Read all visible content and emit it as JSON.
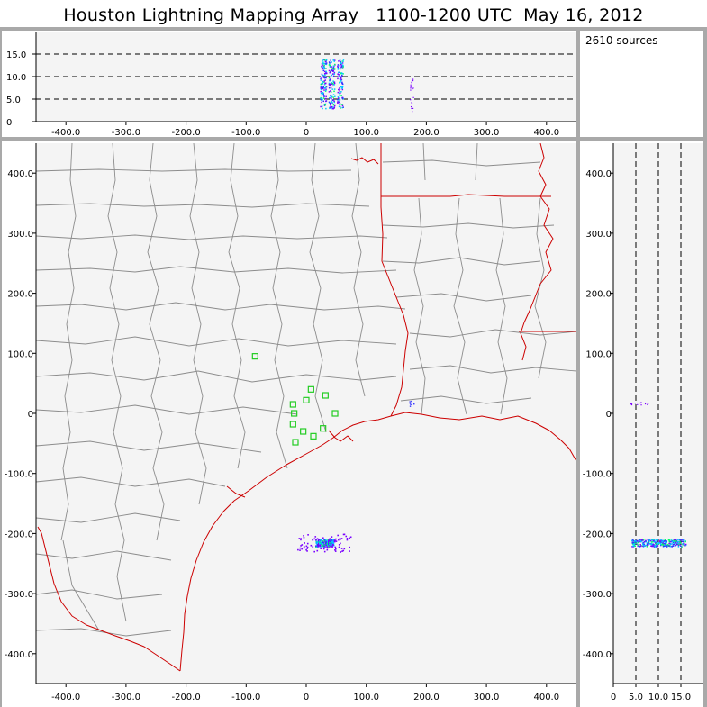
{
  "title": "Houston Lightning Mapping Array   1100-1200 UTC  May 16, 2012",
  "source_count_label": "2610 sources",
  "colors": {
    "background": "#f4f4f4",
    "county_lines": "#8c8c8c",
    "state_and_coast_lines": "#cc0000",
    "station_markers": "#22cc22",
    "source_colors": [
      "#7a00ff",
      "#3030ff",
      "#00c8ff",
      "#00ff66",
      "#ffff00",
      "#ff2200"
    ]
  },
  "altitude_time_panel": {
    "y_ticks": [
      "0",
      "5.0",
      "10.0",
      "15.0"
    ],
    "x_ticks": [
      "-400.0",
      "-300.0",
      "-200.0",
      "-100.0",
      "0",
      "100.0",
      "200.0",
      "300.0",
      "400.0"
    ],
    "dashed_lines_km": [
      5,
      10,
      15
    ]
  },
  "plan_view": {
    "x_ticks": [
      "-400.0",
      "-300.0",
      "-200.0",
      "-100.0",
      "0",
      "100.0",
      "200.0",
      "300.0",
      "400.0"
    ],
    "y_ticks": [
      "400.0",
      "300.0",
      "200.0",
      "100.0",
      "0",
      "-100.0",
      "-200.0",
      "-300.0",
      "-400.0"
    ],
    "stations_km": [
      [
        -85,
        95
      ],
      [
        -22,
        15
      ],
      [
        0,
        22
      ],
      [
        8,
        40
      ],
      [
        32,
        30
      ],
      [
        -20,
        0
      ],
      [
        -22,
        -18
      ],
      [
        -5,
        -30
      ],
      [
        12,
        -38
      ],
      [
        28,
        -25
      ],
      [
        48,
        0
      ],
      [
        -18,
        -48
      ]
    ],
    "lightning_cluster_km": {
      "x": 30,
      "y": -215
    },
    "isolated_source_km": {
      "x": 175,
      "y": 17
    }
  },
  "altitude_ns_panel": {
    "x_ticks": [
      "0",
      "5.0",
      "10.0",
      "15.0"
    ],
    "y_ticks": [
      "400.0",
      "300.0",
      "200.0",
      "100.0",
      "0",
      "-100.0",
      "-200.0",
      "-300.0",
      "-400.0"
    ],
    "dashed_lines_km": [
      5,
      10,
      15
    ]
  }
}
